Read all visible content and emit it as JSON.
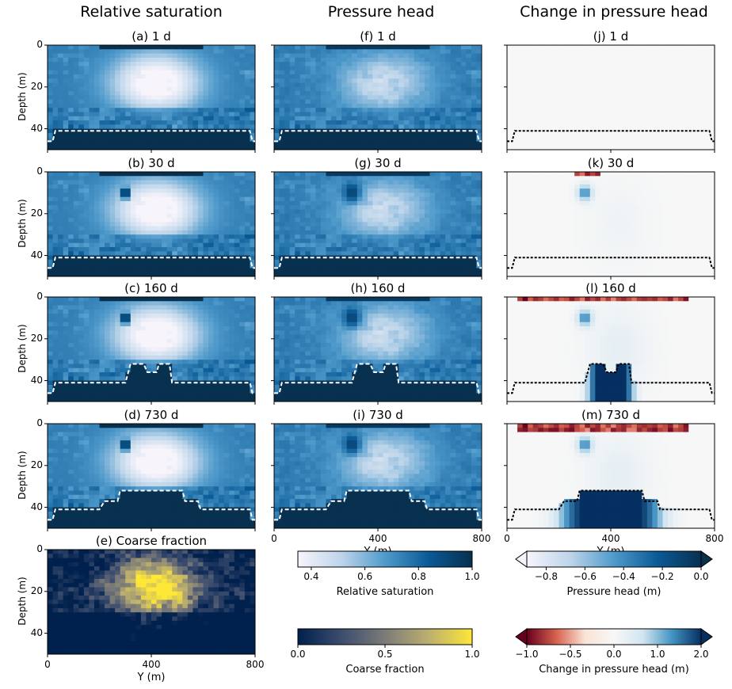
{
  "column_headers": [
    "Relative saturation",
    "Pressure head",
    "Change in pressure head"
  ],
  "chart_data": {
    "type": "heatmap",
    "y_axis_label": "Depth (m)",
    "y_ticks": [
      "0",
      "20",
      "40"
    ],
    "ylim": [
      50,
      0
    ],
    "x_axis_label": "Y (m)",
    "x_ticks": [
      "0",
      "400",
      "800"
    ],
    "xlim": [
      0,
      800
    ],
    "panels": [
      {
        "id": "a",
        "title": "(a) 1 d",
        "field": "saturation",
        "day": 1,
        "boundary": [
          [
            0,
            46
          ],
          [
            20,
            46
          ],
          [
            30,
            41
          ],
          [
            780,
            41
          ],
          [
            790,
            46
          ],
          [
            800,
            46
          ]
        ]
      },
      {
        "id": "b",
        "title": "(b) 30 d",
        "field": "saturation",
        "day": 30,
        "boundary": [
          [
            0,
            46
          ],
          [
            20,
            46
          ],
          [
            30,
            41
          ],
          [
            780,
            41
          ],
          [
            790,
            46
          ],
          [
            800,
            46
          ]
        ]
      },
      {
        "id": "c",
        "title": "(c) 160 d",
        "field": "saturation",
        "day": 160,
        "boundary": [
          [
            0,
            46
          ],
          [
            20,
            46
          ],
          [
            30,
            41
          ],
          [
            300,
            41
          ],
          [
            320,
            32
          ],
          [
            370,
            32
          ],
          [
            385,
            36
          ],
          [
            420,
            36
          ],
          [
            430,
            32
          ],
          [
            470,
            32
          ],
          [
            480,
            41
          ],
          [
            780,
            41
          ],
          [
            790,
            46
          ],
          [
            800,
            46
          ]
        ]
      },
      {
        "id": "d",
        "title": "(d) 730 d",
        "field": "saturation",
        "day": 730,
        "boundary": [
          [
            0,
            46
          ],
          [
            20,
            46
          ],
          [
            30,
            41
          ],
          [
            200,
            41
          ],
          [
            220,
            37
          ],
          [
            270,
            37
          ],
          [
            280,
            32
          ],
          [
            520,
            32
          ],
          [
            530,
            37
          ],
          [
            580,
            37
          ],
          [
            590,
            41
          ],
          [
            780,
            41
          ],
          [
            790,
            46
          ],
          [
            800,
            46
          ]
        ]
      },
      {
        "id": "e",
        "title": "(e) Coarse fraction",
        "field": "coarse",
        "day": 0,
        "boundary": []
      },
      {
        "id": "f",
        "title": "(f) 1 d",
        "field": "pressure",
        "day": 1,
        "boundary": [
          [
            0,
            46
          ],
          [
            20,
            46
          ],
          [
            30,
            41
          ],
          [
            780,
            41
          ],
          [
            790,
            46
          ],
          [
            800,
            46
          ]
        ]
      },
      {
        "id": "g",
        "title": "(g) 30 d",
        "field": "pressure",
        "day": 30,
        "boundary": [
          [
            0,
            46
          ],
          [
            20,
            46
          ],
          [
            30,
            41
          ],
          [
            780,
            41
          ],
          [
            790,
            46
          ],
          [
            800,
            46
          ]
        ]
      },
      {
        "id": "h",
        "title": "(h) 160 d",
        "field": "pressure",
        "day": 160,
        "boundary": [
          [
            0,
            46
          ],
          [
            20,
            46
          ],
          [
            30,
            41
          ],
          [
            300,
            41
          ],
          [
            320,
            32
          ],
          [
            370,
            32
          ],
          [
            385,
            36
          ],
          [
            420,
            36
          ],
          [
            430,
            32
          ],
          [
            470,
            32
          ],
          [
            480,
            41
          ],
          [
            780,
            41
          ],
          [
            790,
            46
          ],
          [
            800,
            46
          ]
        ]
      },
      {
        "id": "i",
        "title": "(i) 730 d",
        "field": "pressure",
        "day": 730,
        "boundary": [
          [
            0,
            46
          ],
          [
            20,
            46
          ],
          [
            30,
            41
          ],
          [
            200,
            41
          ],
          [
            220,
            37
          ],
          [
            270,
            37
          ],
          [
            280,
            32
          ],
          [
            520,
            32
          ],
          [
            530,
            37
          ],
          [
            580,
            37
          ],
          [
            590,
            41
          ],
          [
            780,
            41
          ],
          [
            790,
            46
          ],
          [
            800,
            46
          ]
        ]
      },
      {
        "id": "j",
        "title": "(j) 1 d",
        "field": "change",
        "day": 1,
        "boundary": [
          [
            0,
            46
          ],
          [
            20,
            46
          ],
          [
            30,
            41
          ],
          [
            780,
            41
          ],
          [
            790,
            46
          ],
          [
            800,
            46
          ]
        ]
      },
      {
        "id": "k",
        "title": "(k) 30 d",
        "field": "change",
        "day": 30,
        "boundary": [
          [
            0,
            46
          ],
          [
            20,
            46
          ],
          [
            30,
            41
          ],
          [
            780,
            41
          ],
          [
            790,
            46
          ],
          [
            800,
            46
          ]
        ]
      },
      {
        "id": "l",
        "title": "(l) 160 d",
        "field": "change",
        "day": 160,
        "boundary": [
          [
            0,
            46
          ],
          [
            20,
            46
          ],
          [
            30,
            41
          ],
          [
            300,
            41
          ],
          [
            320,
            32
          ],
          [
            370,
            32
          ],
          [
            385,
            36
          ],
          [
            420,
            36
          ],
          [
            430,
            32
          ],
          [
            470,
            32
          ],
          [
            480,
            41
          ],
          [
            780,
            41
          ],
          [
            790,
            46
          ],
          [
            800,
            46
          ]
        ]
      },
      {
        "id": "m",
        "title": "(m) 730 d",
        "field": "change",
        "day": 730,
        "boundary": [
          [
            0,
            46
          ],
          [
            20,
            46
          ],
          [
            30,
            41
          ],
          [
            200,
            41
          ],
          [
            220,
            37
          ],
          [
            270,
            37
          ],
          [
            280,
            32
          ],
          [
            520,
            32
          ],
          [
            530,
            37
          ],
          [
            580,
            37
          ],
          [
            590,
            41
          ],
          [
            780,
            41
          ],
          [
            790,
            46
          ],
          [
            800,
            46
          ]
        ]
      }
    ],
    "colorbars": [
      {
        "id": "saturation",
        "label": "Relative saturation",
        "ticks": [
          "0.4",
          "0.6",
          "0.8",
          "1.0"
        ],
        "range": [
          0.35,
          1.0
        ],
        "tick_values": [
          0.4,
          0.6,
          0.8,
          1.0
        ],
        "colors": [
          "#f7f4fb",
          "#bdd5ea",
          "#4f9acb",
          "#0a5a96",
          "#08304f"
        ],
        "extend": "neither"
      },
      {
        "id": "coarse",
        "label": "Coarse fraction",
        "ticks": [
          "0.0",
          "0.5",
          "1.0"
        ],
        "range": [
          0,
          1
        ],
        "tick_values": [
          0,
          0.5,
          1
        ],
        "colors": [
          "#00204d",
          "#3c4d6e",
          "#7c7b78",
          "#bcaf6f",
          "#fde737"
        ],
        "extend": "neither"
      },
      {
        "id": "pressure",
        "label": "Pressure head (m)",
        "ticks": [
          "−0.8",
          "−0.6",
          "−0.4",
          "−0.2",
          "0.0"
        ],
        "range": [
          -0.9,
          0
        ],
        "tick_values": [
          -0.8,
          -0.6,
          -0.4,
          -0.2,
          0
        ],
        "colors": [
          "#f7f4fb",
          "#bdd5ea",
          "#4f9acb",
          "#0a5a96",
          "#08304f"
        ],
        "extend": "both"
      },
      {
        "id": "change",
        "label": "Change in pressure head (m)",
        "ticks": [
          "−1.0",
          "−0.5",
          "0.0",
          "1.0",
          "2.0"
        ],
        "range": [
          -1,
          2
        ],
        "tick_values": [
          -1,
          -0.5,
          0,
          1,
          2
        ],
        "colors": [
          "#67001f",
          "#d6604d",
          "#fbe3d6",
          "#f7f7f7",
          "#d1e5f0",
          "#4393c3",
          "#053061"
        ],
        "extend": "both"
      }
    ]
  }
}
